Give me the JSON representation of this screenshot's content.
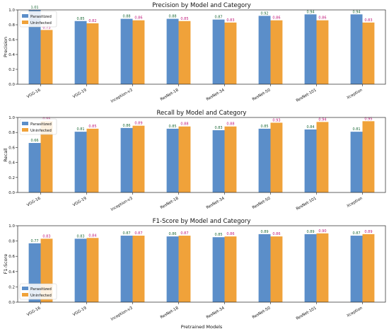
{
  "chart_data": [
    {
      "type": "bar",
      "title": "Precision by Model and Category",
      "xlabel": "",
      "ylabel": "Precision",
      "ylim": [
        0,
        1.0
      ],
      "yticks": [
        "0.0",
        "0.2",
        "0.4",
        "0.6",
        "0.8",
        "1.0"
      ],
      "categories": [
        "VGG-16",
        "VGG-19",
        "Inception-v3",
        "ResNet-18",
        "ResNet-34",
        "ResNet-50",
        "ResNet-101",
        "Xception"
      ],
      "legend_position": "top-left",
      "series": [
        {
          "name": "Parasitized",
          "color": "#5b8ec9",
          "label_color": "#1f6b3a",
          "values": [
            1.01,
            0.85,
            0.88,
            0.88,
            0.87,
            0.92,
            0.94,
            0.94
          ],
          "labels": [
            "1.01",
            "0.85",
            "0.88",
            "0.88",
            "0.87",
            "0.92",
            "0.94",
            "0.94"
          ]
        },
        {
          "name": "Uninfected",
          "color": "#f0a23a",
          "label_color": "#c0187a",
          "values": [
            0.73,
            0.82,
            0.86,
            0.85,
            0.83,
            0.86,
            0.86,
            0.83
          ],
          "labels": [
            "0.73",
            "0.82",
            "0.86",
            "0.85",
            "0.83",
            "0.86",
            "0.86",
            "0.83"
          ]
        }
      ]
    },
    {
      "type": "bar",
      "title": "Recall by Model and Category",
      "xlabel": "",
      "ylabel": "Recall",
      "ylim": [
        0,
        1.0
      ],
      "yticks": [
        "0.0",
        "0.2",
        "0.4",
        "0.6",
        "0.8",
        "1.0"
      ],
      "categories": [
        "VGG-16",
        "VGG-19",
        "Inception-v3",
        "ResNet-18",
        "ResNet-34",
        "ResNet-50",
        "ResNet-101",
        "Xception"
      ],
      "legend_position": "top-left",
      "series": [
        {
          "name": "Parasitized",
          "color": "#5b8ec9",
          "label_color": "#1f6b3a",
          "values": [
            0.66,
            0.81,
            0.86,
            0.85,
            0.83,
            0.85,
            0.84,
            0.81
          ],
          "labels": [
            "0.66",
            "0.81",
            "0.86",
            "0.85",
            "0.83",
            "0.85",
            "0.84",
            "0.81"
          ]
        },
        {
          "name": "Uninfected",
          "color": "#f0a23a",
          "label_color": "#c0187a",
          "values": [
            0.95,
            0.85,
            0.89,
            0.88,
            0.88,
            0.93,
            0.94,
            0.95
          ],
          "labels": [
            "0.95",
            "0.85",
            "0.89",
            "0.88",
            "0.88",
            "0.93",
            "0.94",
            "0.95"
          ]
        }
      ]
    },
    {
      "type": "bar",
      "title": "F1-Score by Model and Category",
      "xlabel": "Pretrained Models",
      "ylabel": "F1-Score",
      "ylim": [
        0,
        1.0
      ],
      "yticks": [
        "0.0",
        "0.2",
        "0.4",
        "0.6",
        "0.8",
        "1.0"
      ],
      "categories": [
        "VGG-16",
        "VGG-19",
        "Inception-v3",
        "ResNet-18",
        "ResNet-34",
        "ResNet-50",
        "ResNet-101",
        "Xception"
      ],
      "legend_position": "bottom-left",
      "series": [
        {
          "name": "Parasitized",
          "color": "#5b8ec9",
          "label_color": "#1f6b3a",
          "values": [
            0.77,
            0.83,
            0.87,
            0.86,
            0.85,
            0.89,
            0.89,
            0.87
          ],
          "labels": [
            "0.77",
            "0.83",
            "0.87",
            "0.86",
            "0.85",
            "0.89",
            "0.89",
            "0.87"
          ]
        },
        {
          "name": "Uninfected",
          "color": "#f0a23a",
          "label_color": "#c0187a",
          "values": [
            0.83,
            0.84,
            0.87,
            0.87,
            0.86,
            0.86,
            0.9,
            0.89
          ],
          "labels": [
            "0.83",
            "0.84",
            "0.87",
            "0.87",
            "0.86",
            "0.86",
            "0.90",
            "0.89"
          ]
        }
      ]
    }
  ]
}
